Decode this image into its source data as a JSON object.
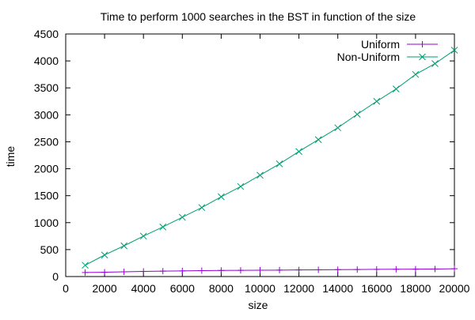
{
  "chart_data": {
    "type": "line",
    "title": "Time to perform 1000 searches in the BST in function of the size",
    "xlabel": "size",
    "ylabel": "time",
    "xlim": [
      0,
      20000
    ],
    "ylim": [
      0,
      4500
    ],
    "xticks": [
      0,
      2000,
      4000,
      6000,
      8000,
      10000,
      12000,
      14000,
      16000,
      18000,
      20000
    ],
    "yticks": [
      0,
      500,
      1000,
      1500,
      2000,
      2500,
      3000,
      3500,
      4000,
      4500
    ],
    "grid": false,
    "legend_position": "top-right",
    "x": [
      1000,
      2000,
      3000,
      4000,
      5000,
      6000,
      7000,
      8000,
      9000,
      10000,
      11000,
      12000,
      13000,
      14000,
      15000,
      16000,
      17000,
      18000,
      19000,
      20000
    ],
    "series": [
      {
        "name": "Uniform",
        "color": "#9400d3",
        "marker": "plus",
        "values": [
          75,
          80,
          88,
          95,
          100,
          105,
          110,
          113,
          115,
          118,
          120,
          123,
          125,
          128,
          130,
          133,
          135,
          137,
          140,
          145
        ]
      },
      {
        "name": "Non-Uniform",
        "color": "#009e73",
        "marker": "cross",
        "values": [
          210,
          400,
          570,
          750,
          920,
          1100,
          1280,
          1480,
          1670,
          1880,
          2090,
          2320,
          2540,
          2760,
          3010,
          3250,
          3480,
          3750,
          3950,
          4200
        ]
      }
    ]
  }
}
